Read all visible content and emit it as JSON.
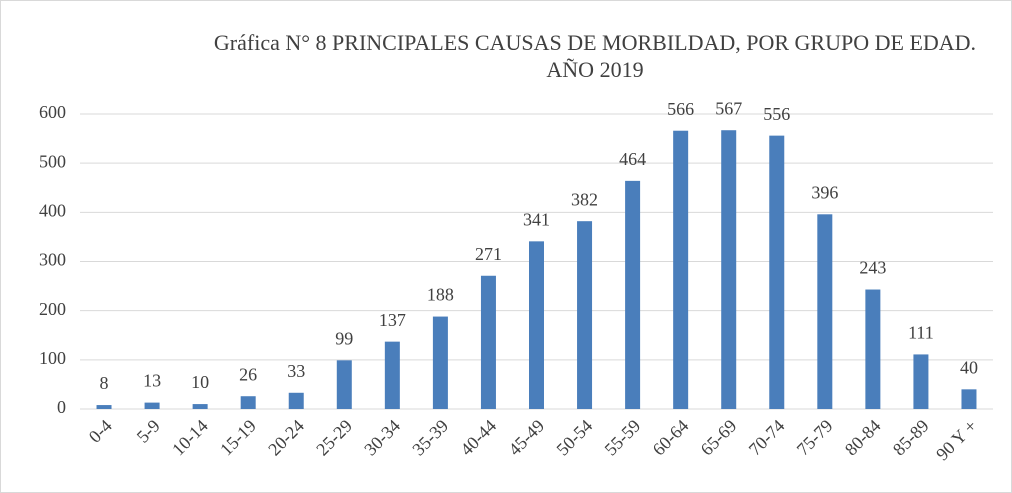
{
  "chart_data": {
    "type": "bar",
    "title": "Gráfica N° 8 PRINCIPALES CAUSAS DE MORBILDAD, POR GRUPO DE EDAD. AÑO 2019",
    "categories": [
      "0-4",
      "5-9",
      "10-14",
      "15-19",
      "20-24",
      "25-29",
      "30-34",
      "35-39",
      "40-44",
      "45-49",
      "50-54",
      "55-59",
      "60-64",
      "65-69",
      "70-74",
      "75-79",
      "80-84",
      "85-89",
      "90 Y +"
    ],
    "values": [
      8,
      13,
      10,
      26,
      33,
      99,
      137,
      188,
      271,
      341,
      382,
      464,
      566,
      567,
      556,
      396,
      243,
      111,
      40
    ],
    "color": "#4a7ebb",
    "ylim": [
      0,
      600
    ],
    "yticks": [
      0,
      100,
      200,
      300,
      400,
      500,
      600
    ],
    "grid": true
  }
}
